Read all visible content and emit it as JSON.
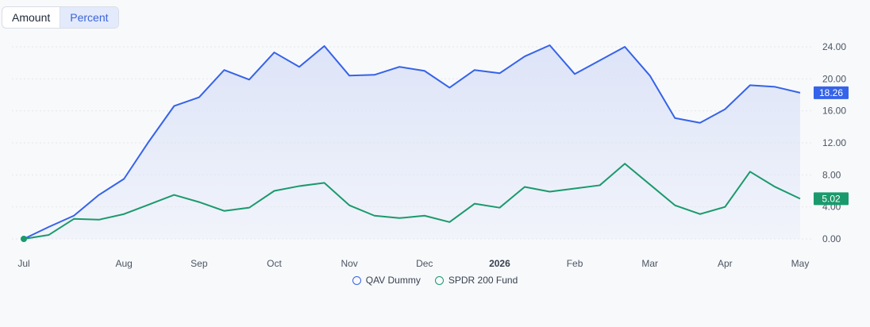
{
  "toggle": {
    "amount_label": "Amount",
    "percent_label": "Percent",
    "active": "Percent"
  },
  "chart_data": {
    "type": "line",
    "ylim": [
      0,
      24
    ],
    "yticks": [
      "0.00",
      "4.00",
      "8.00",
      "12.00",
      "16.00",
      "20.00",
      "24.00"
    ],
    "ytick_values": [
      0,
      4,
      8,
      12,
      16,
      20,
      24
    ],
    "x_labels": [
      "Jul",
      "Aug",
      "Sep",
      "Oct",
      "Nov",
      "Dec",
      "2026",
      "Feb",
      "Mar",
      "Apr",
      "May"
    ],
    "x_label_positions": [
      0,
      4,
      7,
      10,
      13,
      16,
      19,
      22,
      25,
      28,
      31
    ],
    "x_label_bold": [
      false,
      false,
      false,
      false,
      false,
      false,
      true,
      false,
      false,
      false,
      false
    ],
    "grid": true,
    "legend": "bottom-center",
    "series": [
      {
        "name": "QAV Dummy",
        "color": "#3563e9",
        "fill": "#dde4f8",
        "end_label": "18.26",
        "values": [
          0,
          1.5,
          2.9,
          5.5,
          7.5,
          12.2,
          16.6,
          17.7,
          21.1,
          19.9,
          23.3,
          21.5,
          24.1,
          20.4,
          20.5,
          21.5,
          21.0,
          18.9,
          21.1,
          20.7,
          22.8,
          24.2,
          20.6,
          22.3,
          24.0,
          20.4,
          15.1,
          14.5,
          16.2,
          19.2,
          19.0,
          18.26
        ]
      },
      {
        "name": "SPDR 200 Fund",
        "color": "#1a9a6c",
        "end_label": "5.02",
        "values": [
          0,
          0.5,
          2.5,
          2.4,
          3.1,
          4.3,
          5.5,
          4.6,
          3.5,
          3.9,
          6.0,
          6.6,
          7.0,
          4.2,
          2.9,
          2.6,
          2.9,
          2.1,
          4.4,
          3.9,
          6.5,
          5.9,
          6.3,
          6.7,
          9.4,
          6.8,
          4.2,
          3.1,
          4.0,
          8.4,
          6.5,
          5.02
        ]
      }
    ]
  }
}
